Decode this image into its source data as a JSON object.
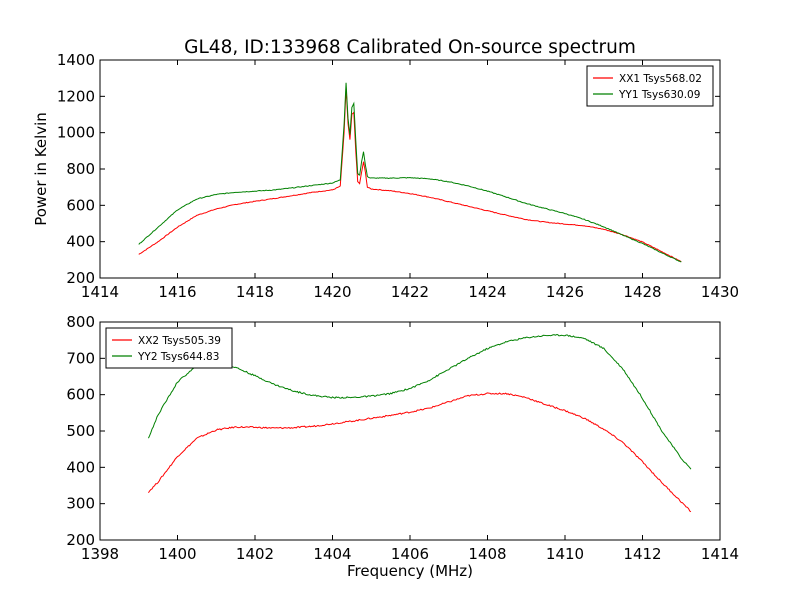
{
  "figure": {
    "title": "GL48, ID:133968 Calibrated On-source spectrum",
    "ylabel": "Power in Kelvin",
    "xlabel": "Frequency (MHz)"
  },
  "chart_data": [
    {
      "type": "line",
      "title": "GL48, ID:133968 Calibrated On-source spectrum",
      "xlabel": "",
      "ylabel": "Power in Kelvin",
      "xlim": [
        1414,
        1430
      ],
      "ylim": [
        200,
        1400
      ],
      "xticks": [
        1414,
        1416,
        1418,
        1420,
        1422,
        1424,
        1426,
        1428,
        1430
      ],
      "yticks": [
        200,
        400,
        600,
        800,
        1000,
        1200,
        1400
      ],
      "grid": false,
      "legend_position": "top-right",
      "series": [
        {
          "name": "XX1 Tsys568.02",
          "color": "#ff0000",
          "x": [
            1415.0,
            1415.5,
            1416.0,
            1416.5,
            1417.0,
            1417.5,
            1418.0,
            1418.5,
            1419.0,
            1419.5,
            1420.0,
            1420.2,
            1420.3,
            1420.35,
            1420.4,
            1420.45,
            1420.5,
            1420.55,
            1420.6,
            1420.65,
            1420.7,
            1420.75,
            1420.8,
            1420.85,
            1420.9,
            1420.95,
            1421.0,
            1421.5,
            1422.0,
            1422.5,
            1423.0,
            1423.5,
            1424.0,
            1424.5,
            1425.0,
            1425.5,
            1426.0,
            1426.5,
            1427.0,
            1427.5,
            1428.0,
            1428.5,
            1429.0
          ],
          "y": [
            330,
            400,
            480,
            545,
            580,
            605,
            622,
            638,
            655,
            672,
            685,
            705,
            1000,
            1250,
            1050,
            960,
            1100,
            1110,
            900,
            730,
            720,
            780,
            840,
            780,
            700,
            695,
            690,
            680,
            665,
            645,
            620,
            595,
            570,
            545,
            522,
            507,
            497,
            488,
            468,
            438,
            398,
            345,
            290
          ]
        },
        {
          "name": "YY1 Tsys630.09",
          "color": "#008000",
          "x": [
            1415.0,
            1415.5,
            1416.0,
            1416.5,
            1417.0,
            1417.5,
            1418.0,
            1418.5,
            1419.0,
            1419.5,
            1420.0,
            1420.2,
            1420.3,
            1420.35,
            1420.4,
            1420.45,
            1420.5,
            1420.55,
            1420.6,
            1420.65,
            1420.7,
            1420.75,
            1420.8,
            1420.85,
            1420.9,
            1420.95,
            1421.0,
            1421.5,
            1422.0,
            1422.5,
            1423.0,
            1423.5,
            1424.0,
            1424.5,
            1425.0,
            1425.5,
            1426.0,
            1426.5,
            1427.0,
            1427.5,
            1428.0,
            1428.5,
            1429.0
          ],
          "y": [
            385,
            480,
            575,
            635,
            660,
            672,
            678,
            685,
            697,
            710,
            723,
            740,
            1050,
            1275,
            1080,
            990,
            1140,
            1160,
            960,
            775,
            765,
            840,
            895,
            820,
            760,
            752,
            750,
            750,
            752,
            746,
            730,
            707,
            678,
            645,
            610,
            582,
            555,
            522,
            482,
            435,
            390,
            338,
            288
          ]
        }
      ]
    },
    {
      "type": "line",
      "title": "",
      "xlabel": "Frequency (MHz)",
      "ylabel": "",
      "xlim": [
        1398,
        1414
      ],
      "ylim": [
        200,
        800
      ],
      "xticks": [
        1398,
        1400,
        1402,
        1404,
        1406,
        1408,
        1410,
        1412,
        1414
      ],
      "yticks": [
        200,
        300,
        400,
        500,
        600,
        700,
        800
      ],
      "grid": false,
      "legend_position": "top-left",
      "series": [
        {
          "name": "XX2 Tsys505.39",
          "color": "#ff0000",
          "x": [
            1399.25,
            1399.5,
            1400.0,
            1400.5,
            1401.0,
            1401.5,
            1402.0,
            1402.5,
            1403.0,
            1403.5,
            1404.0,
            1404.5,
            1405.0,
            1405.5,
            1406.0,
            1406.5,
            1407.0,
            1407.5,
            1408.0,
            1408.5,
            1409.0,
            1409.5,
            1410.0,
            1410.5,
            1411.0,
            1411.5,
            1412.0,
            1412.5,
            1413.0,
            1413.25
          ],
          "y": [
            332,
            360,
            430,
            480,
            503,
            511,
            510,
            508,
            509,
            513,
            520,
            527,
            535,
            543,
            552,
            563,
            580,
            597,
            603,
            603,
            592,
            573,
            556,
            535,
            505,
            468,
            415,
            358,
            305,
            278
          ]
        },
        {
          "name": "YY2 Tsys644.83",
          "color": "#008000",
          "x": [
            1399.25,
            1399.5,
            1400.0,
            1400.5,
            1401.0,
            1401.5,
            1402.0,
            1402.5,
            1403.0,
            1403.5,
            1404.0,
            1404.5,
            1405.0,
            1405.5,
            1406.0,
            1406.5,
            1407.0,
            1407.5,
            1408.0,
            1408.5,
            1409.0,
            1409.5,
            1410.0,
            1410.5,
            1411.0,
            1411.5,
            1412.0,
            1412.5,
            1413.0,
            1413.25
          ],
          "y": [
            480,
            545,
            635,
            680,
            688,
            675,
            652,
            628,
            610,
            598,
            592,
            592,
            596,
            603,
            617,
            640,
            670,
            700,
            727,
            746,
            757,
            763,
            764,
            755,
            727,
            670,
            590,
            500,
            425,
            395
          ]
        }
      ]
    }
  ]
}
